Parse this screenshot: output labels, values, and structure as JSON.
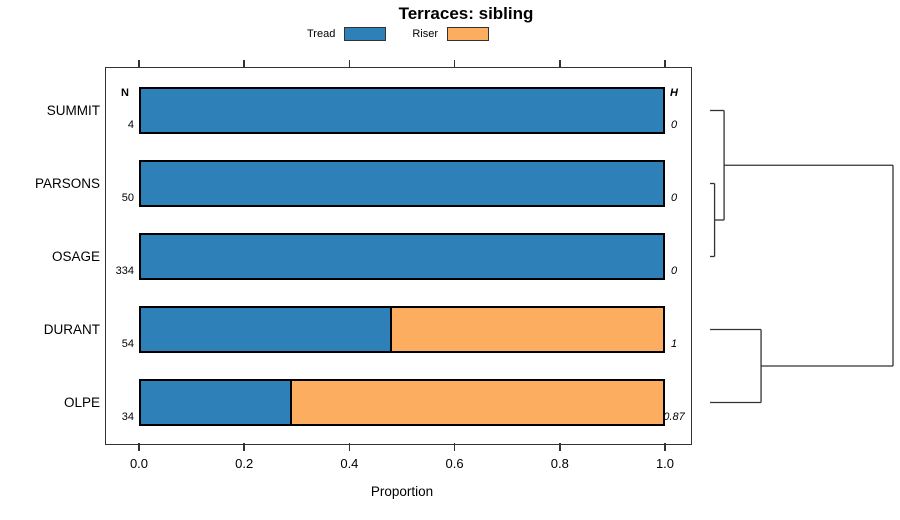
{
  "title": "Terraces: sibling",
  "legend": {
    "items": [
      {
        "label": "Tread",
        "color": "#2E80B9"
      },
      {
        "label": "Riser",
        "color": "#FCAD60"
      }
    ]
  },
  "axis": {
    "label": "Proportion",
    "tick_values": [
      0,
      0.2,
      0.4,
      0.6,
      0.8,
      1.0
    ],
    "tick_labels": [
      "0.0",
      "0.2",
      "0.4",
      "0.6",
      "0.8",
      "1.0"
    ]
  },
  "columns": {
    "n_header": "N",
    "h_header": "H"
  },
  "chart_data": {
    "type": "bar",
    "stacked": true,
    "orientation": "horizontal",
    "title": "Terraces: sibling",
    "xlabel": "Proportion",
    "xlim": [
      0,
      1
    ],
    "grid": false,
    "legend_position": "top",
    "categories": [
      "SUMMIT",
      "PARSONS",
      "OSAGE",
      "DURANT",
      "OLPE"
    ],
    "series": [
      {
        "name": "Tread",
        "color": "#2E80B9",
        "values": [
          1.0,
          1.0,
          1.0,
          0.48,
          0.29
        ]
      },
      {
        "name": "Riser",
        "color": "#FCAD60",
        "values": [
          0.0,
          0.0,
          0.0,
          0.52,
          0.71
        ]
      }
    ],
    "row_annotations": {
      "n_header": "N",
      "n_values": [
        4,
        50,
        334,
        54,
        34
      ],
      "n_labels": [
        "4",
        "50",
        "334",
        "54",
        "34"
      ],
      "h_header": "H",
      "h_values": [
        0,
        0,
        0,
        1,
        0.87
      ],
      "h_labels": [
        "0",
        "0",
        "0",
        "1",
        "0.87"
      ]
    },
    "dendrogram": {
      "orientation": "left-to-right",
      "line_color": "#333333",
      "tree": {
        "height": 1.0,
        "children": [
          {
            "height": 0.077,
            "children": [
              {
                "leaf": "SUMMIT"
              },
              {
                "height": 0.025,
                "children": [
                  {
                    "leaf": "PARSONS"
                  },
                  {
                    "leaf": "OSAGE"
                  }
                ]
              }
            ]
          },
          {
            "height": 0.279,
            "children": [
              {
                "leaf": "DURANT"
              },
              {
                "leaf": "OLPE"
              }
            ]
          }
        ]
      }
    }
  }
}
